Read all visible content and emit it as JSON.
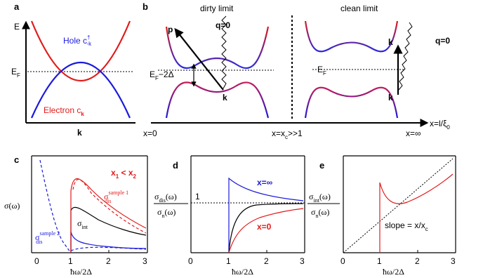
{
  "panels": {
    "a": {
      "label": "a",
      "y_axis": "E",
      "x_axis": "k",
      "fermi": "E",
      "fermi_sub": "F",
      "hole_text": "Hole c",
      "hole_sup": "†",
      "hole_sub": "-k",
      "electron_text": "Electron c",
      "electron_sub": "k"
    },
    "b": {
      "label": "b",
      "dirty_title": "dirty limit",
      "clean_title": "clean limit",
      "p": "p",
      "q_left": "q=0",
      "q_right": "q=0",
      "k_left": "k",
      "k_right_top": "k",
      "k_right_bottom": "k",
      "gap_label": "E",
      "gap_sub": "F",
      "gap_suffix": "−2Δ",
      "ef_right": "E",
      "ef_right_sub": "F",
      "axis_label": "x=l/ξ",
      "axis_sub": "0",
      "x0": "x=0",
      "xc": "x=x",
      "xc_sub": "c",
      "xc_suffix": ">>1",
      "xinf": "x=∞"
    },
    "c": {
      "label": "c",
      "ylabel": "σ(ω)",
      "xlabel": "ħω/2Δ",
      "legend_x1": "x",
      "legend_sub1": "1",
      "legend_lt": " < ",
      "legend_x2": "x",
      "legend_sub2": "2",
      "sigma_int": "σ",
      "sigma_int_sub": "int",
      "dis1": "σ",
      "dis1_sup": "sample 1",
      "dis1_sub": "dis",
      "dis2": "σ",
      "dis2_sup": "sample 2",
      "dis2_sub": "dis",
      "xticks": [
        "0",
        "1",
        "2",
        "3"
      ]
    },
    "d": {
      "label": "d",
      "num": "σ",
      "num_sub": "dis",
      "num_tail": "(ω)",
      "den": "σ",
      "den_sub": "n",
      "den_tail": "(ω)",
      "one": "1",
      "xinf": "x=∞",
      "x0": "x=0",
      "xlabel": "ħω/2Δ",
      "xticks": [
        "0",
        "1",
        "2",
        "3"
      ]
    },
    "e": {
      "label": "e",
      "num": "σ",
      "num_sub": "int",
      "num_tail": "(ω)",
      "den": "σ",
      "den_sub": "n",
      "den_tail": "(ω)",
      "slope": "slope = x/x",
      "slope_sub": "c",
      "xlabel": "ħω/2Δ",
      "xticks": [
        "0",
        "1",
        "2",
        "3"
      ]
    }
  },
  "colors": {
    "red": "#e21a1a",
    "blue": "#1a1adc",
    "black": "#000000"
  }
}
